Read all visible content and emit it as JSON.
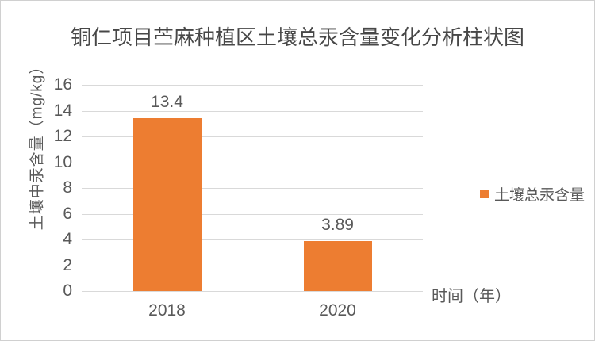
{
  "colors": {
    "bar": "#ED7D31",
    "grid": "#D9D9D9",
    "text": "#595959",
    "title_text": "#474747",
    "border": "#D0D0D0",
    "background": "#FFFFFF"
  },
  "legend": {
    "label": "土壤总汞含量",
    "marker_color": "#ED7D31"
  },
  "chart_data": {
    "type": "bar",
    "title": "铜仁项目苎麻种植区土壤总汞含量变化分析柱状图",
    "categories": [
      "2018",
      "2020"
    ],
    "values": [
      13.4,
      3.89
    ],
    "data_labels": [
      "13.4",
      "3.89"
    ],
    "series": [
      {
        "name": "土壤总汞含量",
        "values": [
          13.4,
          3.89
        ],
        "color": "#ED7D31"
      }
    ],
    "xlabel": "时间（年）",
    "ylabel": "土壤中汞含量（mg/kg）",
    "ylim": [
      0,
      16
    ],
    "ytick_step": 2,
    "yticks": [
      0,
      2,
      4,
      6,
      8,
      10,
      12,
      14,
      16
    ],
    "grid": true,
    "legend_position": "right"
  }
}
